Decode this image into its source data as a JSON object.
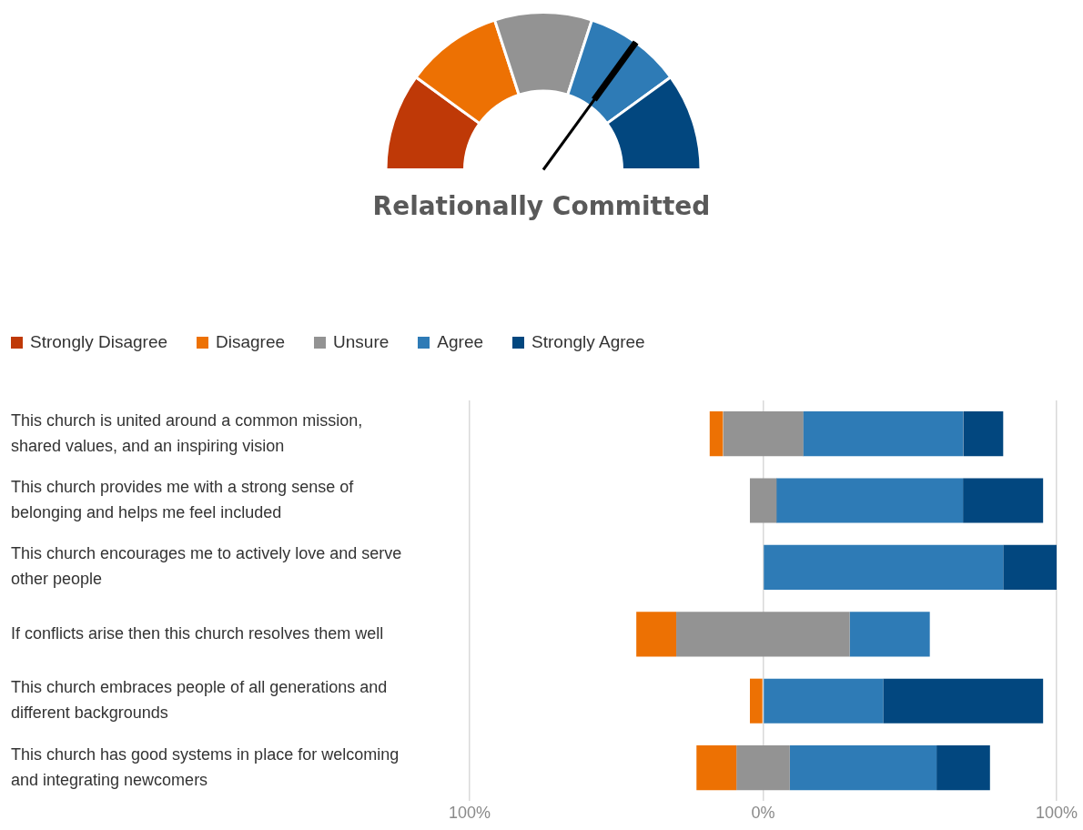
{
  "chart_data": [
    {
      "type": "donut",
      "title": "Relationally Committed",
      "categories": [
        "Strongly Disagree",
        "Disagree",
        "Unsure",
        "Agree",
        "Strongly Agree"
      ],
      "values": [
        20,
        20,
        20,
        20,
        20
      ],
      "colors": [
        "#bf3907",
        "#ed7103",
        "#939393",
        "#2e7bb6",
        "#02477f"
      ],
      "needle": "Agree",
      "legend": "bottom left"
    },
    {
      "type": "bar",
      "orientation": "horizontal",
      "categories": [
        "This church is united around a common mission, shared values, and an inspiring vision",
        "This church provides me with a strong sense of belonging and helps me feel included",
        "This church encourages me to actively love and serve other people",
        "If conflicts arise then this church resolves them well",
        "This church embraces people of all generations and different backgrounds",
        "This church has good systems in place for welcoming and integrating newcomers"
      ],
      "series": [
        {
          "color": "#bf3907",
          "values": [
            null,
            null,
            null,
            null,
            null,
            null
          ],
          "base": [
            null,
            null,
            null,
            null,
            null,
            null
          ]
        },
        {
          "color": "#ed7103",
          "values": [
            4.5,
            null,
            null,
            13.6,
            4.5,
            13.6
          ],
          "base": [
            -18.2,
            null,
            null,
            -43.2,
            -4.5,
            -22.7
          ]
        },
        {
          "color": "#939393",
          "values": [
            27.3,
            9.1,
            null,
            59.1,
            null,
            18.2
          ],
          "base": [
            -13.6,
            -4.5,
            null,
            -29.6,
            null,
            -9.1
          ]
        },
        {
          "color": "#2e7bb6",
          "values": [
            54.5,
            63.6,
            81.8,
            27.3,
            40.9,
            50
          ],
          "base": [
            13.6,
            4.5,
            0,
            29.5,
            0,
            9.1
          ]
        },
        {
          "color": "#02477f",
          "values": [
            13.6,
            27.3,
            18.2,
            null,
            54.5,
            18.2
          ],
          "base": [
            68.2,
            68.1,
            81.8,
            null,
            40.9,
            59.1
          ]
        }
      ],
      "xlim": [
        -100,
        100
      ],
      "xticks": [
        {
          "value": -100,
          "label": "100%"
        },
        {
          "value": 0,
          "label": "0%"
        },
        {
          "value": 100,
          "label": "100%"
        }
      ],
      "grid": "x"
    }
  ]
}
